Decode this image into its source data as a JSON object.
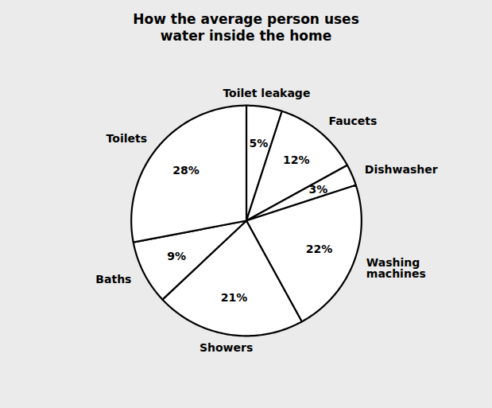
{
  "chart_data": {
    "type": "pie",
    "title": "How the average person uses\nwater inside the home",
    "categories": [
      "Toilet leakage",
      "Faucets",
      "Dishwasher",
      "Washing\nmachines",
      "Showers",
      "Baths",
      "Toilets"
    ],
    "values": [
      5,
      12,
      3,
      22,
      21,
      9,
      28
    ],
    "value_labels": [
      "5%",
      "12%",
      "3%",
      "22%",
      "21%",
      "9%",
      "28%"
    ],
    "data_labels": true,
    "color": "white"
  }
}
